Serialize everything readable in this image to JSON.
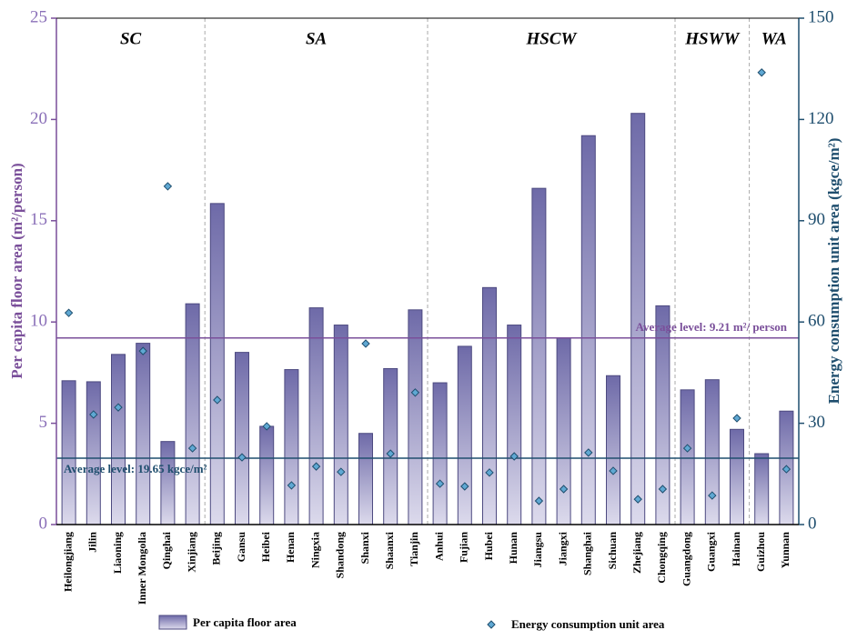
{
  "chart_data": {
    "type": "bar_scatter_dual",
    "ylabel": "Per capita floor area (m²/person)",
    "y2label": "Energy consumption unit area (kgce/m²)",
    "ylim": [
      0,
      25
    ],
    "yticks": [
      0,
      5,
      10,
      15,
      20,
      25
    ],
    "y2lim": [
      0,
      150
    ],
    "y2ticks": [
      0,
      30,
      60,
      90,
      120,
      150
    ],
    "groups": [
      {
        "name": "SC",
        "categories": [
          "Heilongjiang",
          "Jilin",
          "Liaoning",
          "Inner Mongolia",
          "Qinghai",
          "Xinjiang"
        ]
      },
      {
        "name": "SA",
        "categories": [
          "Beijing",
          "Gansu",
          "Heibei",
          "Henan",
          "Ningxia",
          "Shandong",
          "Shanxi",
          "Shaanxi",
          "Tianjin"
        ]
      },
      {
        "name": "HSCW",
        "categories": [
          "Anhui",
          "Fujian",
          "Hubei",
          "Hunan",
          "Jiangsu",
          "Jiangxi",
          "Shanghai",
          "Sichuan",
          "Zhejiang",
          "Chongqing"
        ]
      },
      {
        "name": "HSWW",
        "categories": [
          "Guangdong",
          "Guangxi",
          "Hainan"
        ]
      },
      {
        "name": "WA",
        "categories": [
          "Guizhou",
          "Yunnan"
        ]
      }
    ],
    "series": [
      {
        "name": "Per capita floor area",
        "kind": "bar",
        "color": "#6e6aa8",
        "values": [
          7.1,
          7.05,
          8.4,
          8.95,
          4.1,
          10.9,
          15.85,
          8.5,
          4.85,
          7.65,
          10.7,
          9.85,
          4.5,
          7.7,
          10.6,
          7.0,
          8.8,
          11.7,
          9.85,
          16.6,
          9.2,
          19.2,
          7.35,
          20.3,
          10.8,
          6.65,
          7.15,
          4.7,
          3.5,
          5.6
        ],
        "average": 9.21,
        "average_label": "Average level: 9.21 m²/ person",
        "average_color": "#7a4f9a"
      },
      {
        "name": "Energy consumption unit area",
        "kind": "scatter",
        "axis": "y2",
        "color": "#5fa8d3",
        "values": [
          62.7,
          32.6,
          34.7,
          51.4,
          100.2,
          22.6,
          36.9,
          19.9,
          29.1,
          11.6,
          17.2,
          15.6,
          53.6,
          21.0,
          39.1,
          12.1,
          11.3,
          15.4,
          20.2,
          7.0,
          10.5,
          21.3,
          15.9,
          7.5,
          10.5,
          22.6,
          8.6,
          31.5,
          133.9,
          16.4
        ],
        "average": 19.65,
        "average_label": "Average level: 19.65 kgce/m²",
        "average_color": "#1f4e6e"
      }
    ]
  }
}
